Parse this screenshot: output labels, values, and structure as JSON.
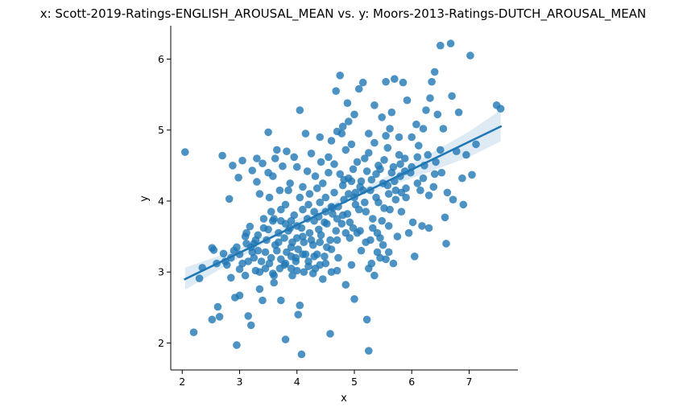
{
  "chart_data": {
    "type": "scatter",
    "title": "x: Scott-2019-Ratings-ENGLISH_AROUSAL_MEAN vs. y: Moors-2013-Ratings-DUTCH_AROUSAL_MEAN",
    "xlabel": "x",
    "ylabel": "y",
    "xlim": [
      1.8,
      7.85
    ],
    "ylim": [
      1.62,
      6.47
    ],
    "xticks": [
      2,
      3,
      4,
      5,
      6,
      7
    ],
    "yticks": [
      2,
      3,
      4,
      5,
      6
    ],
    "grid": false,
    "legend": "none",
    "point_color": "#1f77b4",
    "regression": {
      "line": [
        [
          2.05,
          2.9
        ],
        [
          7.55,
          5.05
        ]
      ],
      "ci_band": [
        [
          2.05,
          2.75
        ],
        [
          3.0,
          3.2
        ],
        [
          4.0,
          3.68
        ],
        [
          5.0,
          4.05
        ],
        [
          6.0,
          4.32
        ],
        [
          7.0,
          4.62
        ],
        [
          7.55,
          4.84
        ],
        [
          7.55,
          5.28
        ],
        [
          7.0,
          4.98
        ],
        [
          6.0,
          4.52
        ],
        [
          5.0,
          4.12
        ],
        [
          4.0,
          3.74
        ],
        [
          3.0,
          3.33
        ],
        [
          2.05,
          3.06
        ]
      ],
      "color": "#1f77b4"
    },
    "points": [
      [
        2.05,
        4.69
      ],
      [
        2.2,
        2.15
      ],
      [
        2.3,
        2.91
      ],
      [
        2.35,
        3.06
      ],
      [
        2.52,
        3.34
      ],
      [
        2.52,
        2.33
      ],
      [
        2.55,
        3.31
      ],
      [
        2.6,
        3.12
      ],
      [
        2.62,
        2.51
      ],
      [
        2.65,
        2.37
      ],
      [
        2.7,
        4.64
      ],
      [
        2.72,
        3.26
      ],
      [
        2.78,
        3.1
      ],
      [
        2.82,
        4.03
      ],
      [
        2.85,
        2.92
      ],
      [
        2.88,
        4.5
      ],
      [
        2.9,
        3.3
      ],
      [
        2.92,
        2.64
      ],
      [
        2.95,
        1.97
      ],
      [
        2.98,
        4.33
      ],
      [
        3.0,
        3.04
      ],
      [
        3.0,
        2.67
      ],
      [
        3.05,
        4.57
      ],
      [
        3.1,
        3.5
      ],
      [
        3.12,
        3.55
      ],
      [
        3.15,
        2.38
      ],
      [
        3.18,
        3.64
      ],
      [
        3.2,
        2.25
      ],
      [
        3.22,
        4.43
      ],
      [
        3.25,
        3.4
      ],
      [
        3.25,
        3.2
      ],
      [
        3.28,
        3.02
      ],
      [
        3.3,
        4.27
      ],
      [
        3.32,
        3.3
      ],
      [
        3.35,
        2.76
      ],
      [
        3.35,
        4.1
      ],
      [
        3.38,
        3.15
      ],
      [
        3.4,
        2.6
      ],
      [
        3.4,
        4.53
      ],
      [
        3.42,
        3.75
      ],
      [
        3.45,
        3.05
      ],
      [
        3.47,
        3.45
      ],
      [
        3.5,
        3.6
      ],
      [
        3.5,
        4.97
      ],
      [
        3.52,
        4.05
      ],
      [
        3.55,
        3.85
      ],
      [
        3.55,
        3.2
      ],
      [
        3.58,
        4.35
      ],
      [
        3.6,
        2.85
      ],
      [
        3.6,
        3.75
      ],
      [
        3.62,
        4.6
      ],
      [
        3.65,
        3.3
      ],
      [
        3.68,
        3.42
      ],
      [
        3.7,
        4.15
      ],
      [
        3.72,
        3.72
      ],
      [
        3.72,
        2.6
      ],
      [
        3.75,
        4.49
      ],
      [
        3.78,
        3.1
      ],
      [
        3.8,
        2.05
      ],
      [
        3.8,
        3.95
      ],
      [
        3.82,
        4.7
      ],
      [
        3.85,
        3.58
      ],
      [
        3.88,
        4.25
      ],
      [
        3.9,
        3.05
      ],
      [
        3.9,
        3.35
      ],
      [
        3.92,
        2.95
      ],
      [
        3.95,
        4.62
      ],
      [
        3.95,
        3.8
      ],
      [
        3.98,
        3.2
      ],
      [
        4.0,
        4.48
      ],
      [
        4.0,
        3.65
      ],
      [
        4.02,
        2.4
      ],
      [
        4.05,
        5.28
      ],
      [
        4.05,
        2.53
      ],
      [
        4.08,
        1.84
      ],
      [
        4.1,
        3.5
      ],
      [
        4.1,
        4.2
      ],
      [
        4.12,
        3.0
      ],
      [
        4.15,
        4.95
      ],
      [
        4.18,
        3.75
      ],
      [
        4.2,
        3.15
      ],
      [
        4.22,
        4.1
      ],
      [
        4.25,
        4.67
      ],
      [
        4.25,
        3.45
      ],
      [
        4.28,
        2.98
      ],
      [
        4.3,
        3.85
      ],
      [
        4.32,
        4.35
      ],
      [
        4.35,
        3.25
      ],
      [
        4.38,
        3.6
      ],
      [
        4.4,
        4.9
      ],
      [
        4.4,
        3.1
      ],
      [
        4.42,
        4.55
      ],
      [
        4.45,
        2.9
      ],
      [
        4.48,
        3.7
      ],
      [
        4.5,
        4.05
      ],
      [
        4.52,
        3.35
      ],
      [
        4.55,
        4.4
      ],
      [
        4.58,
        2.13
      ],
      [
        4.6,
        3.0
      ],
      [
        4.62,
        3.9
      ],
      [
        4.65,
        4.52
      ],
      [
        4.68,
        5.55
      ],
      [
        4.7,
        3.45
      ],
      [
        4.72,
        3.2
      ],
      [
        4.75,
        5.77
      ],
      [
        4.78,
        4.95
      ],
      [
        4.8,
        3.8
      ],
      [
        4.82,
        4.3
      ],
      [
        4.85,
        2.82
      ],
      [
        4.85,
        3.55
      ],
      [
        4.88,
        5.38
      ],
      [
        4.9,
        4.1
      ],
      [
        4.92,
        3.7
      ],
      [
        4.95,
        4.8
      ],
      [
        4.95,
        3.1
      ],
      [
        4.98,
        4.45
      ],
      [
        5.0,
        2.62
      ],
      [
        5.02,
        3.95
      ],
      [
        5.05,
        3.55
      ],
      [
        5.08,
        5.58
      ],
      [
        5.1,
        4.2
      ],
      [
        5.12,
        3.3
      ],
      [
        5.15,
        5.67
      ],
      [
        5.18,
        4.6
      ],
      [
        5.2,
        3.85
      ],
      [
        5.22,
        2.33
      ],
      [
        5.25,
        1.89
      ],
      [
        5.25,
        4.95
      ],
      [
        5.28,
        3.45
      ],
      [
        5.3,
        4.3
      ],
      [
        5.32,
        3.75
      ],
      [
        5.35,
        5.35
      ],
      [
        5.38,
        4.05
      ],
      [
        5.4,
        3.55
      ],
      [
        5.42,
        4.5
      ],
      [
        5.45,
        3.2
      ],
      [
        5.48,
        5.18
      ],
      [
        5.5,
        4.25
      ],
      [
        5.52,
        3.9
      ],
      [
        5.55,
        5.68
      ],
      [
        5.58,
        4.75
      ],
      [
        5.6,
        3.65
      ],
      [
        5.62,
        5.02
      ],
      [
        5.65,
        4.4
      ],
      [
        5.68,
        3.12
      ],
      [
        5.7,
        5.72
      ],
      [
        5.72,
        4.15
      ],
      [
        5.75,
        3.5
      ],
      [
        5.78,
        4.9
      ],
      [
        5.8,
        4.35
      ],
      [
        5.82,
        3.85
      ],
      [
        5.85,
        5.67
      ],
      [
        5.88,
        4.6
      ],
      [
        5.9,
        4.05
      ],
      [
        5.92,
        5.42
      ],
      [
        5.95,
        3.55
      ],
      [
        5.98,
        4.4
      ],
      [
        6.0,
        4.9
      ],
      [
        6.02,
        3.7
      ],
      [
        6.05,
        3.22
      ],
      [
        6.08,
        5.08
      ],
      [
        6.1,
        4.25
      ],
      [
        6.12,
        4.78
      ],
      [
        6.15,
        4.15
      ],
      [
        6.18,
        3.65
      ],
      [
        6.2,
        5.02
      ],
      [
        6.22,
        4.5
      ],
      [
        6.25,
        5.28
      ],
      [
        6.28,
        4.65
      ],
      [
        6.3,
        3.62
      ],
      [
        6.32,
        5.45
      ],
      [
        6.35,
        5.68
      ],
      [
        6.38,
        4.2
      ],
      [
        6.4,
        5.82
      ],
      [
        6.42,
        4.55
      ],
      [
        6.45,
        5.22
      ],
      [
        6.5,
        6.19
      ],
      [
        6.52,
        4.4
      ],
      [
        6.55,
        5.02
      ],
      [
        6.58,
        3.77
      ],
      [
        6.6,
        3.4
      ],
      [
        6.62,
        4.12
      ],
      [
        6.68,
        6.22
      ],
      [
        6.7,
        5.48
      ],
      [
        6.72,
        4.02
      ],
      [
        6.78,
        4.7
      ],
      [
        6.82,
        5.25
      ],
      [
        6.88,
        4.32
      ],
      [
        6.9,
        3.95
      ],
      [
        6.95,
        4.65
      ],
      [
        7.02,
        6.05
      ],
      [
        7.05,
        4.37
      ],
      [
        7.12,
        4.8
      ],
      [
        7.48,
        5.35
      ],
      [
        7.55,
        5.3
      ],
      [
        3.0,
        3.25
      ],
      [
        3.1,
        2.95
      ],
      [
        3.15,
        3.15
      ],
      [
        3.2,
        3.35
      ],
      [
        3.28,
        3.45
      ],
      [
        3.35,
        3.0
      ],
      [
        3.45,
        3.28
      ],
      [
        3.52,
        3.12
      ],
      [
        3.58,
        2.98
      ],
      [
        3.62,
        3.38
      ],
      [
        3.68,
        3.55
      ],
      [
        3.72,
        3.18
      ],
      [
        3.78,
        3.48
      ],
      [
        3.82,
        3.28
      ],
      [
        3.88,
        3.62
      ],
      [
        3.92,
        3.42
      ],
      [
        3.98,
        3.15
      ],
      [
        4.02,
        3.32
      ],
      [
        4.08,
        3.62
      ],
      [
        4.12,
        3.42
      ],
      [
        4.15,
        3.25
      ],
      [
        4.22,
        3.55
      ],
      [
        4.28,
        3.38
      ],
      [
        4.32,
        3.05
      ],
      [
        4.38,
        3.78
      ],
      [
        4.42,
        3.52
      ],
      [
        4.48,
        3.22
      ],
      [
        4.52,
        3.68
      ],
      [
        4.58,
        3.45
      ],
      [
        4.62,
        3.82
      ],
      [
        4.68,
        3.58
      ],
      [
        4.72,
        3.92
      ],
      [
        4.78,
        3.68
      ],
      [
        4.82,
        4.02
      ],
      [
        4.88,
        3.82
      ],
      [
        4.92,
        3.48
      ],
      [
        4.98,
        3.62
      ],
      [
        5.02,
        4.12
      ],
      [
        5.08,
        3.88
      ],
      [
        5.12,
        4.28
      ],
      [
        5.18,
        3.98
      ],
      [
        5.22,
        4.42
      ],
      [
        5.28,
        4.15
      ],
      [
        5.32,
        3.62
      ],
      [
        5.38,
        4.38
      ],
      [
        5.42,
        3.98
      ],
      [
        5.48,
        3.72
      ],
      [
        5.52,
        4.58
      ],
      [
        5.58,
        4.22
      ],
      [
        5.62,
        3.88
      ],
      [
        5.68,
        4.48
      ],
      [
        5.72,
        4.02
      ],
      [
        5.78,
        4.65
      ],
      [
        5.82,
        4.12
      ],
      [
        5.88,
        4.42
      ],
      [
        3.3,
        4.6
      ],
      [
        3.5,
        4.4
      ],
      [
        3.65,
        4.72
      ],
      [
        3.85,
        4.15
      ],
      [
        4.05,
        4.05
      ],
      [
        4.18,
        4.42
      ],
      [
        4.35,
        4.18
      ],
      [
        4.45,
        4.25
      ],
      [
        4.55,
        4.62
      ],
      [
        4.65,
        4.12
      ],
      [
        4.75,
        4.38
      ],
      [
        4.85,
        4.72
      ],
      [
        4.95,
        4.28
      ],
      [
        5.05,
        4.55
      ],
      [
        5.15,
        4.15
      ],
      [
        5.25,
        4.68
      ],
      [
        5.35,
        4.82
      ],
      [
        5.45,
        4.45
      ],
      [
        5.55,
        4.92
      ],
      [
        5.65,
        5.25
      ],
      [
        4.8,
        5.05
      ],
      [
        4.9,
        5.12
      ],
      [
        5.0,
        5.22
      ],
      [
        4.7,
        4.98
      ],
      [
        4.6,
        4.85
      ],
      [
        3.72,
        3.88
      ],
      [
        3.58,
        3.72
      ],
      [
        3.42,
        3.62
      ],
      [
        3.32,
        3.52
      ],
      [
        3.22,
        3.28
      ],
      [
        3.12,
        3.4
      ],
      [
        3.05,
        3.12
      ],
      [
        2.95,
        3.35
      ],
      [
        2.85,
        3.2
      ],
      [
        2.75,
        3.15
      ],
      [
        4.1,
        3.88
      ],
      [
        4.2,
        3.95
      ],
      [
        4.3,
        3.72
      ],
      [
        4.4,
        3.98
      ],
      [
        4.5,
        3.85
      ],
      [
        4.6,
        3.92
      ],
      [
        4.7,
        3.75
      ],
      [
        4.8,
        4.22
      ],
      [
        4.9,
        4.32
      ],
      [
        5.0,
        4.05
      ],
      [
        5.1,
        3.58
      ],
      [
        5.2,
        3.42
      ],
      [
        5.3,
        3.12
      ],
      [
        5.4,
        3.28
      ],
      [
        5.5,
        3.38
      ],
      [
        3.8,
        3.68
      ],
      [
        3.9,
        3.72
      ],
      [
        4.0,
        3.48
      ],
      [
        4.1,
        3.25
      ],
      [
        4.2,
        3.08
      ],
      [
        4.3,
        3.22
      ],
      [
        4.4,
        3.42
      ],
      [
        4.5,
        3.12
      ],
      [
        4.6,
        3.32
      ],
      [
        4.7,
        3.02
      ],
      [
        5.6,
        4.1
      ],
      [
        5.7,
        4.28
      ],
      [
        5.8,
        4.52
      ],
      [
        5.9,
        4.18
      ],
      [
        6.0,
        4.48
      ],
      [
        6.1,
        4.62
      ],
      [
        6.2,
        4.32
      ],
      [
        6.3,
        4.08
      ],
      [
        6.4,
        4.38
      ],
      [
        6.5,
        4.72
      ],
      [
        3.6,
        2.95
      ],
      [
        3.7,
        3.05
      ],
      [
        3.8,
        3.12
      ],
      [
        3.9,
        3.22
      ],
      [
        4.0,
        3.02
      ],
      [
        5.25,
        3.05
      ],
      [
        5.35,
        2.95
      ],
      [
        5.45,
        3.48
      ],
      [
        5.55,
        3.18
      ],
      [
        5.6,
        3.28
      ]
    ]
  }
}
